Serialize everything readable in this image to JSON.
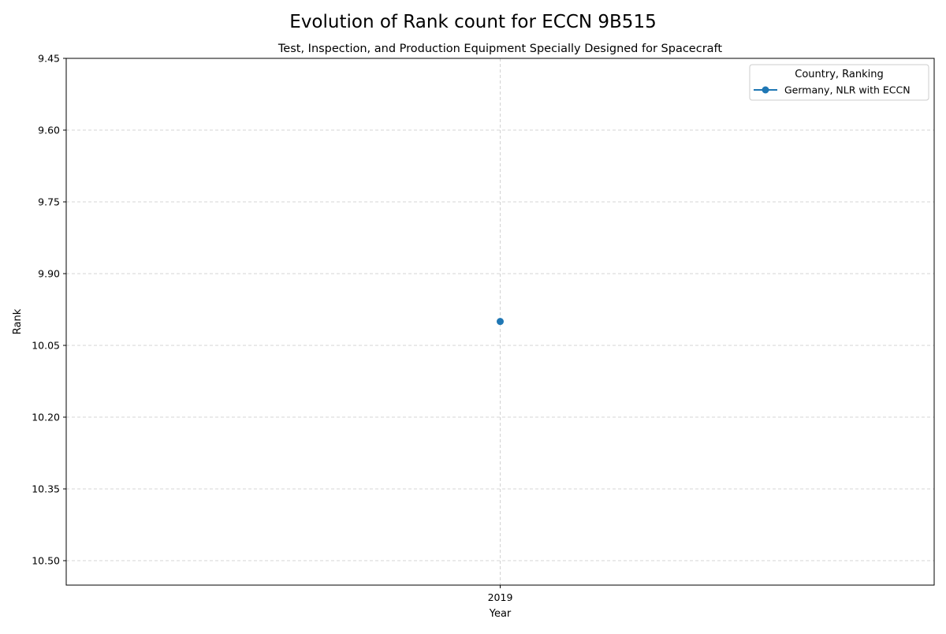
{
  "figure": {
    "suptitle": "Evolution of Rank count for ECCN 9B515"
  },
  "chart_data": {
    "type": "line",
    "title": "Test, Inspection, and Production Equipment Specially Designed for Spacecraft",
    "xlabel": "Year",
    "ylabel": "Rank",
    "x_ticks": [
      "2019"
    ],
    "y_ticks": [
      "9.45",
      "9.60",
      "9.75",
      "9.90",
      "10.05",
      "10.20",
      "10.35",
      "10.50"
    ],
    "ylim": [
      9.45,
      10.5
    ],
    "y_inverted": true,
    "grid": true,
    "legend": {
      "title": "Country, Ranking",
      "placement": "top-right"
    },
    "series": [
      {
        "name": "Germany, NLR with ECCN",
        "color": "#1f77b4",
        "x": [
          "2019"
        ],
        "y": [
          10.0
        ]
      }
    ]
  }
}
